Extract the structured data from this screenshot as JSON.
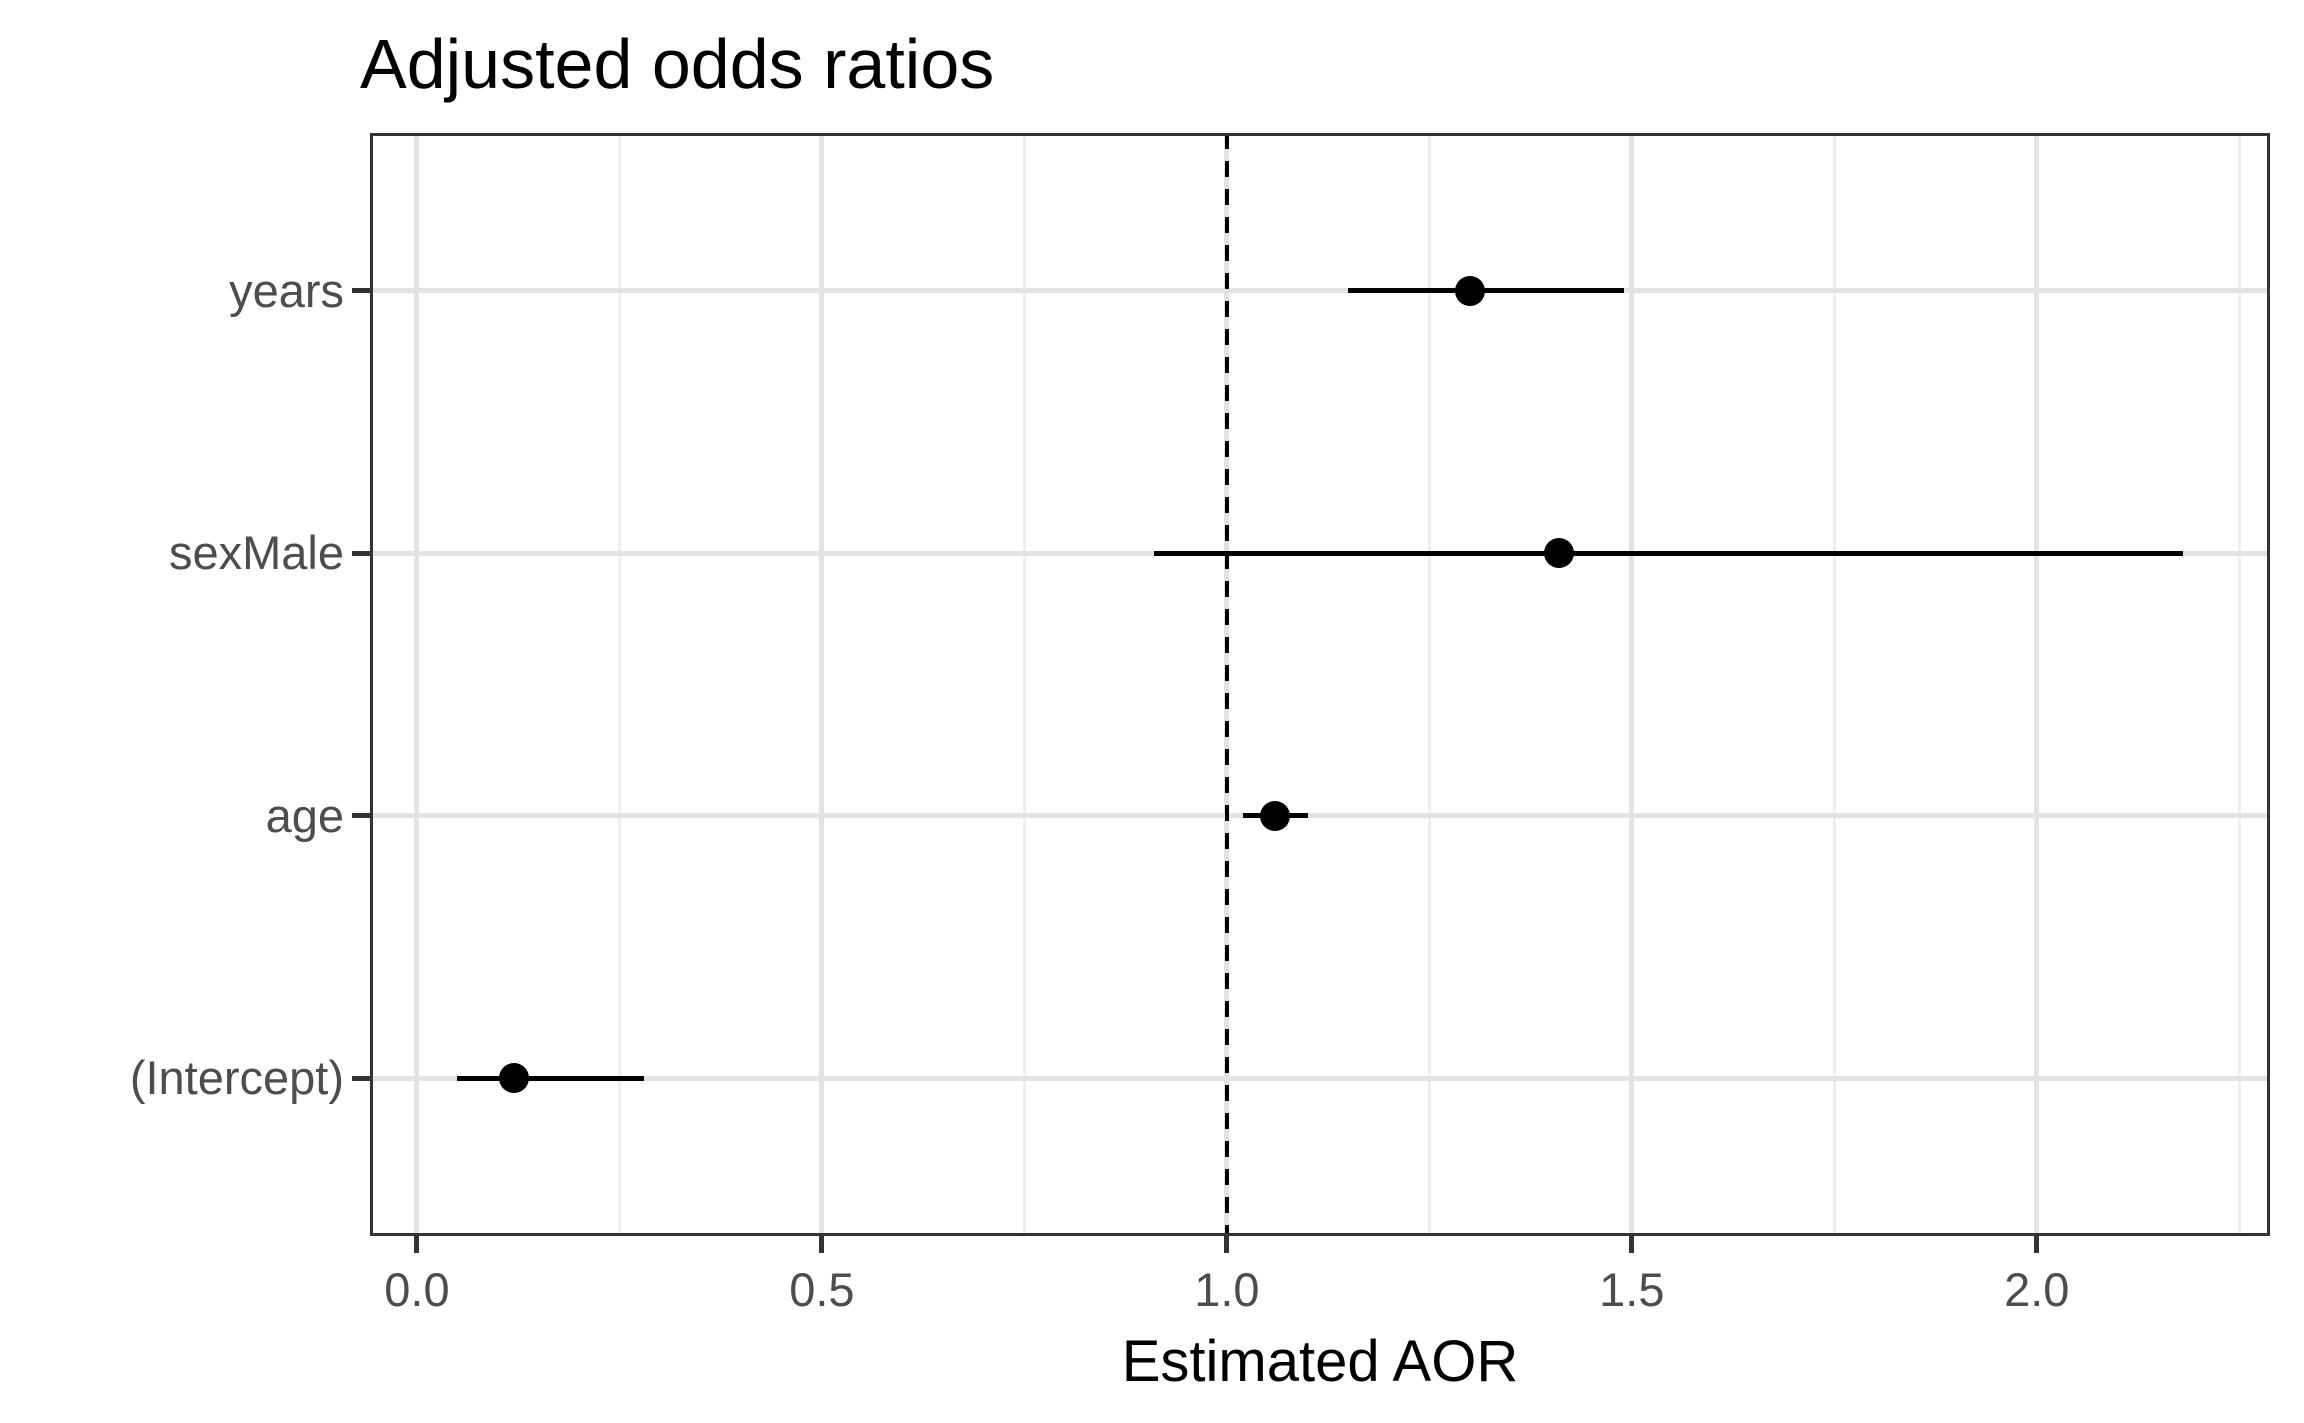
{
  "chart_data": {
    "type": "pointrange",
    "title": "Adjusted odds ratios",
    "xlabel": "Estimated AOR",
    "ylabel": "",
    "categories": [
      "years",
      "sexMale",
      "age",
      "(Intercept)"
    ],
    "points": [
      {
        "category": "years",
        "estimate": 1.3,
        "ci_low": 1.15,
        "ci_high": 1.49
      },
      {
        "category": "sexMale",
        "estimate": 1.41,
        "ci_low": 0.91,
        "ci_high": 2.18
      },
      {
        "category": "age",
        "estimate": 1.06,
        "ci_low": 1.02,
        "ci_high": 1.1
      },
      {
        "category": "(Intercept)",
        "estimate": 0.12,
        "ci_low": 0.05,
        "ci_high": 0.28
      }
    ],
    "x_ticks": [
      0.0,
      0.5,
      1.0,
      1.5,
      2.0
    ],
    "x_tick_labels": [
      "0.0",
      "0.5",
      "1.0",
      "1.5",
      "2.0"
    ],
    "x_minor_ticks": [
      0.25,
      0.75,
      1.25,
      1.75,
      2.25
    ],
    "xlim": [
      -0.058,
      2.288
    ],
    "reference_line_x": 1.0,
    "reference_line_style": "dashed",
    "grid": "vertical major+minor, horizontal major at categories",
    "legend_position": "none",
    "colors": {
      "point": "#000000",
      "ci_bar": "#000000",
      "reference_line": "#000000",
      "grid_major": "#e3e3e3",
      "grid_minor": "#eeeeee",
      "panel_border": "#333333",
      "axis_text": "#4d4d4d",
      "title_text": "#000000",
      "background": "#ffffff"
    }
  }
}
